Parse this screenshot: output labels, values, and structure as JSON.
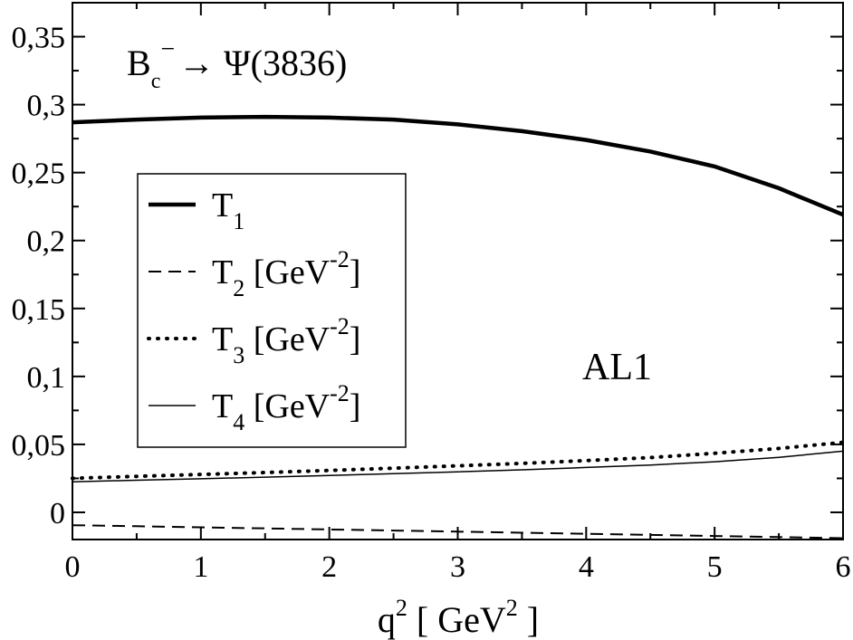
{
  "chart_data": {
    "type": "line",
    "title": "",
    "annotation_main": "B",
    "annotation_sub": "c",
    "annotation_sup": "−",
    "annotation_rest": "→ Ψ(3836)",
    "model_label": "AL1",
    "xlabel_main": "q",
    "xlabel_sup": "2",
    "xlabel_rest": " [ GeV",
    "xlabel_sup2": "2",
    "xlabel_end": " ]",
    "ylabel": "",
    "xlim": [
      0,
      6
    ],
    "ylim": [
      -0.02,
      0.375
    ],
    "grid": false,
    "legend_position": "left-center",
    "x_ticks": [
      0,
      1,
      2,
      3,
      4,
      5,
      6
    ],
    "x_tick_labels": [
      "0",
      "1",
      "2",
      "3",
      "4",
      "5",
      "6"
    ],
    "y_ticks": [
      0,
      0.05,
      0.1,
      0.15,
      0.2,
      0.25,
      0.3,
      0.35
    ],
    "y_tick_labels": [
      "0",
      "0,05",
      "0,1",
      "0,15",
      "0,2",
      "0,25",
      "0,3",
      "0,35"
    ],
    "x": [
      0,
      0.5,
      1,
      1.5,
      2,
      2.5,
      3,
      3.5,
      4,
      4.5,
      5,
      5.5,
      6
    ],
    "series": [
      {
        "name": "T",
        "sub": "1",
        "unit": "",
        "style": "thick",
        "values": [
          0.287,
          0.289,
          0.2905,
          0.291,
          0.2905,
          0.289,
          0.2855,
          0.2805,
          0.274,
          0.2655,
          0.2545,
          0.2385,
          0.219
        ]
      },
      {
        "name": "T",
        "sub": "2",
        "unit": " [GeV",
        "unit_sup": "-2",
        "unit_end": "]",
        "style": "dashed",
        "values": [
          -0.0095,
          -0.0102,
          -0.011,
          -0.0118,
          -0.0126,
          -0.0134,
          -0.0142,
          -0.015,
          -0.0158,
          -0.0166,
          -0.0174,
          -0.0182,
          -0.019
        ]
      },
      {
        "name": "T",
        "sub": "3",
        "unit": " [GeV",
        "unit_sup": "-2",
        "unit_end": "]",
        "style": "dotted",
        "values": [
          0.025,
          0.0265,
          0.0279,
          0.0293,
          0.0308,
          0.0325,
          0.0342,
          0.036,
          0.0381,
          0.0403,
          0.0435,
          0.047,
          0.0515
        ]
      },
      {
        "name": "T",
        "sub": "4",
        "unit": " [GeV",
        "unit_sup": "-2",
        "unit_end": "]",
        "style": "thin",
        "values": [
          0.0225,
          0.0236,
          0.0247,
          0.0259,
          0.0271,
          0.0284,
          0.0298,
          0.0313,
          0.033,
          0.0348,
          0.0372,
          0.0405,
          0.045
        ]
      }
    ]
  }
}
